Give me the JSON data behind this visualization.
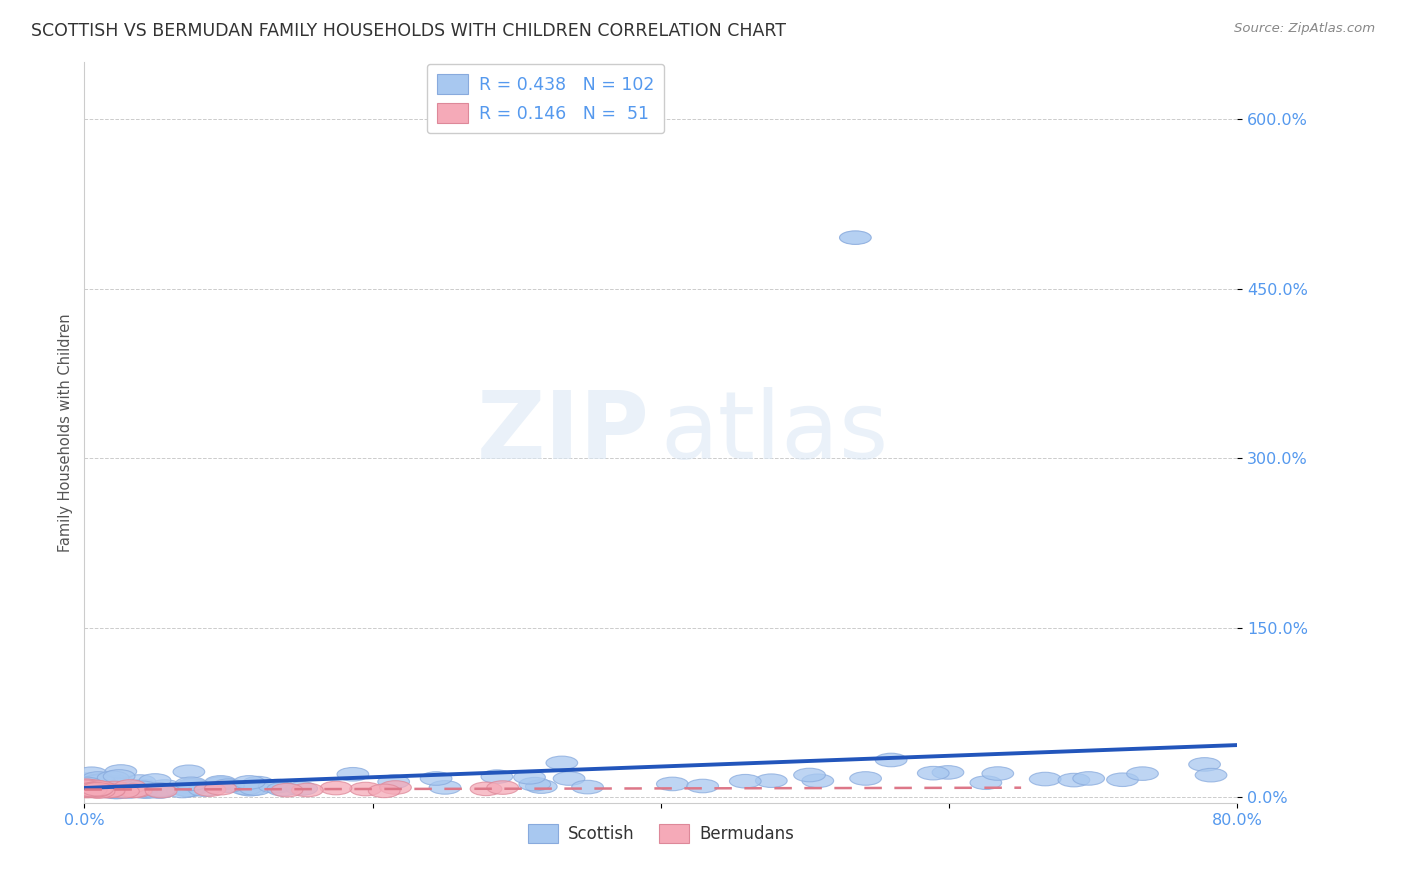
{
  "title": "SCOTTISH VS BERMUDAN FAMILY HOUSEHOLDS WITH CHILDREN CORRELATION CHART",
  "source": "Source: ZipAtlas.com",
  "ylabel": "Family Households with Children",
  "yticks_labels": [
    "0.0%",
    "150.0%",
    "300.0%",
    "450.0%",
    "600.0%"
  ],
  "ytick_vals": [
    0.0,
    1.5,
    3.0,
    4.5,
    6.0
  ],
  "xlim": [
    0.0,
    0.8
  ],
  "ylim": [
    -0.05,
    6.5
  ],
  "legend_r_scottish": "0.438",
  "legend_n_scottish": "102",
  "legend_r_bermudan": "0.146",
  "legend_n_bermudan": "51",
  "scottish_color": "#a8c8f0",
  "scottish_edge_color": "#88aadd",
  "bermudan_color": "#f5aab8",
  "bermudan_edge_color": "#dd8899",
  "scottish_line_color": "#2255bb",
  "bermudan_line_color": "#dd7788",
  "background_color": "#ffffff",
  "tick_color": "#5599ee",
  "grid_color": "#cccccc",
  "title_color": "#333333",
  "source_color": "#888888",
  "ylabel_color": "#555555"
}
